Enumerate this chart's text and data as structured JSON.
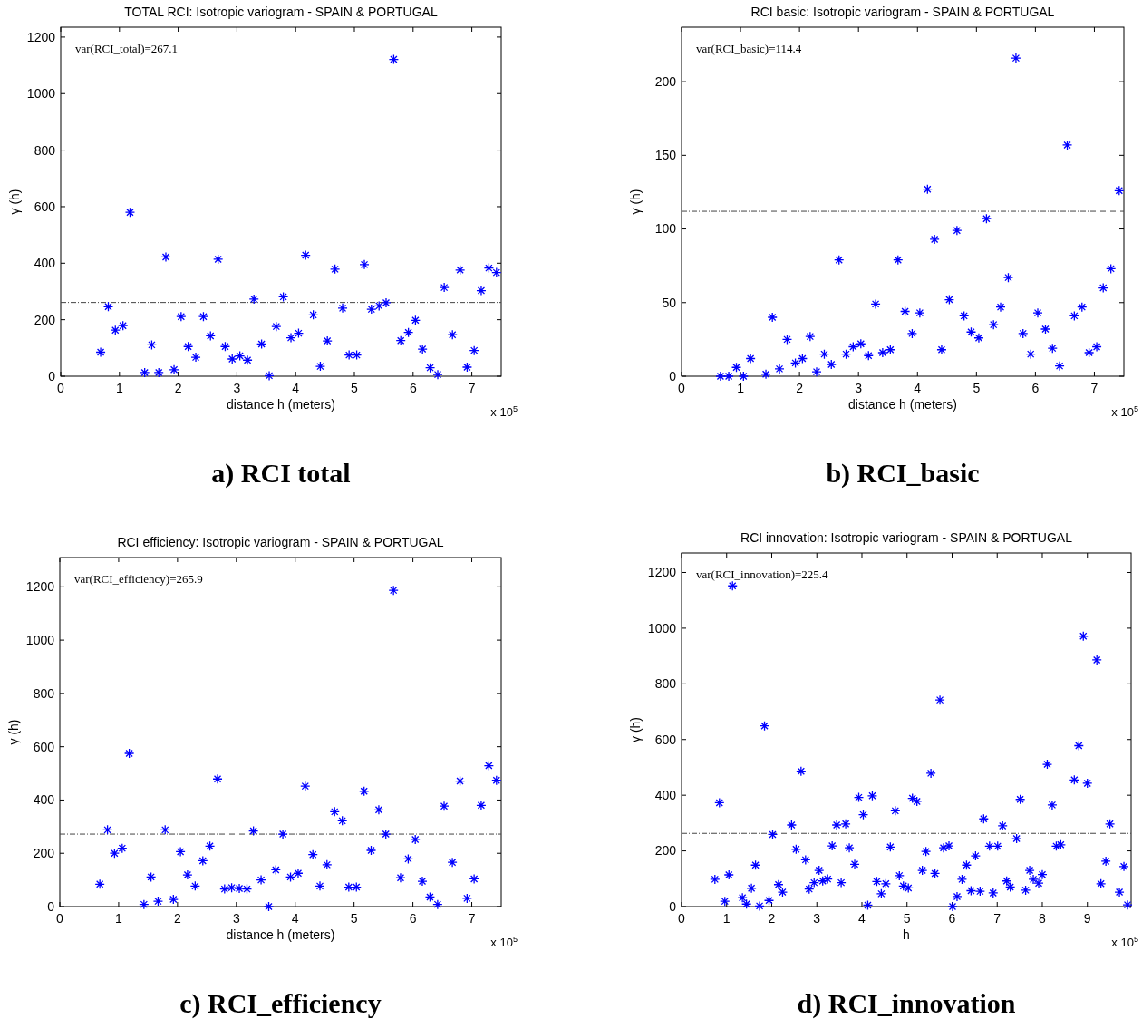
{
  "chart_data": [
    {
      "type": "scatter",
      "title": "TOTAL RCI: Isotropic variogram - SPAIN & PORTUGAL",
      "xlabel": "distance h (meters)",
      "ylabel": "γ (h)",
      "annotations": [
        "var(RCI_total)=267.1",
        "x 10$^{5}$",
        "a) RCI total"
      ],
      "xlim": [
        0,
        7.5
      ],
      "ylim": [
        0,
        1235
      ],
      "xticks": [
        0,
        1,
        2,
        3,
        4,
        5,
        6,
        7
      ],
      "yticks": [
        0,
        200,
        400,
        600,
        800,
        1000,
        1200
      ],
      "grid": false,
      "marker": "cross",
      "x": [
        0.68,
        0.81,
        0.93,
        1.06,
        1.18,
        1.43,
        1.55,
        1.67,
        1.79,
        1.93,
        2.05,
        2.17,
        2.3,
        2.43,
        2.55,
        2.68,
        2.8,
        2.92,
        3.05,
        3.18,
        3.29,
        3.42,
        3.55,
        3.67,
        3.79,
        3.92,
        4.05,
        4.17,
        4.3,
        4.42,
        4.54,
        4.67,
        4.8,
        4.91,
        5.04,
        5.17,
        5.29,
        5.42,
        5.54,
        5.67,
        5.79,
        5.92,
        6.04,
        6.16,
        6.29,
        6.42,
        6.53,
        6.67,
        6.8,
        6.92,
        7.04,
        7.16,
        7.29,
        7.42
      ],
      "series": [
        {
          "color": "#0000ff",
          "values": [
            85,
            246,
            163,
            179,
            580,
            13,
            111,
            13,
            422,
            23,
            211,
            105,
            67,
            211,
            143,
            414,
            105,
            61,
            72,
            57,
            273,
            114,
            2,
            176,
            281,
            136,
            152,
            428,
            217,
            35,
            125,
            379,
            241,
            75,
            75,
            395,
            237,
            249,
            260,
            1121,
            126,
            155,
            198,
            96,
            30,
            6,
            314,
            147,
            376,
            32,
            91,
            303,
            383,
            367
          ]
        }
      ],
      "ref_lines": [
        {
          "axis": "y",
          "value": 261,
          "color": "#444444",
          "line_style": "dashed"
        }
      ]
    },
    {
      "type": "scatter",
      "title": "RCI basic: Isotropic variogram - SPAIN & PORTUGAL",
      "xlabel": "distance h (meters)",
      "ylabel": "γ (h)",
      "annotations": [
        "var(RCI_basic)=114.4",
        "x 10$^{5}$",
        "b) RCI_basic"
      ],
      "xlim": [
        0,
        7.5
      ],
      "ylim": [
        0,
        237
      ],
      "xticks": [
        0,
        1,
        2,
        3,
        4,
        5,
        6,
        7
      ],
      "yticks": [
        0,
        50,
        100,
        150,
        200
      ],
      "grid": false,
      "marker": "cross",
      "x": [
        0.66,
        0.8,
        0.93,
        1.05,
        1.17,
        1.43,
        1.54,
        1.66,
        1.79,
        1.93,
        2.05,
        2.18,
        2.29,
        2.42,
        2.54,
        2.67,
        2.79,
        2.91,
        3.04,
        3.17,
        3.29,
        3.41,
        3.54,
        3.67,
        3.79,
        3.91,
        4.04,
        4.17,
        4.29,
        4.41,
        4.54,
        4.67,
        4.79,
        4.91,
        5.04,
        5.17,
        5.29,
        5.41,
        5.54,
        5.67,
        5.79,
        5.92,
        6.04,
        6.17,
        6.29,
        6.41,
        6.54,
        6.66,
        6.79,
        6.91,
        7.04,
        7.15,
        7.28,
        7.42
      ],
      "series": [
        {
          "color": "#0000ff",
          "values": [
            0,
            0,
            6,
            0,
            12,
            1.4,
            40,
            5,
            25,
            9,
            12,
            27,
            3,
            15,
            8,
            79,
            15,
            20,
            22,
            14,
            49,
            16,
            18,
            79,
            44,
            29,
            43,
            127,
            93,
            18,
            52,
            99,
            41,
            30,
            26,
            107,
            35,
            47,
            67,
            216,
            29,
            15,
            43,
            32,
            19,
            7,
            157,
            41,
            47,
            16,
            20,
            60,
            73,
            126
          ]
        }
      ],
      "ref_lines": [
        {
          "axis": "y",
          "value": 112,
          "color": "#444444",
          "line_style": "dashed"
        }
      ]
    },
    {
      "type": "scatter",
      "title": "RCI efficiency: Isotropic variogram - SPAIN & PORTUGAL",
      "xlabel": "distance h (meters)",
      "ylabel": "γ (h)",
      "annotations": [
        "var(RCI_efficiency)=265.9",
        "x 10$^{5}$",
        "c) RCI_efficiency"
      ],
      "xlim": [
        0,
        7.5
      ],
      "ylim": [
        0,
        1310
      ],
      "xticks": [
        0,
        1,
        2,
        3,
        4,
        5,
        6,
        7
      ],
      "yticks": [
        0,
        200,
        400,
        600,
        800,
        1000,
        1200
      ],
      "grid": false,
      "marker": "cross",
      "x": [
        0.68,
        0.81,
        0.93,
        1.06,
        1.18,
        1.43,
        1.55,
        1.67,
        1.79,
        1.93,
        2.05,
        2.17,
        2.3,
        2.43,
        2.55,
        2.68,
        2.8,
        2.92,
        3.05,
        3.18,
        3.29,
        3.42,
        3.55,
        3.67,
        3.79,
        3.92,
        4.05,
        4.17,
        4.3,
        4.42,
        4.54,
        4.67,
        4.8,
        4.91,
        5.04,
        5.17,
        5.29,
        5.42,
        5.54,
        5.67,
        5.79,
        5.92,
        6.04,
        6.16,
        6.29,
        6.42,
        6.53,
        6.67,
        6.8,
        6.92,
        7.04,
        7.16,
        7.29,
        7.42
      ],
      "series": [
        {
          "color": "#0000ff",
          "values": [
            84,
            288,
            200,
            219,
            575,
            8,
            111,
            20,
            288,
            27,
            206,
            119,
            77,
            172,
            227,
            479,
            66,
            71,
            68,
            66,
            284,
            100,
            0,
            138,
            272,
            111,
            125,
            452,
            195,
            77,
            157,
            356,
            322,
            73,
            73,
            433,
            211,
            363,
            272,
            1187,
            108,
            179,
            252,
            95,
            36,
            8,
            377,
            166,
            471,
            31,
            104,
            380,
            529,
            474
          ]
        }
      ],
      "ref_lines": [
        {
          "axis": "y",
          "value": 272,
          "color": "#444444",
          "line_style": "dashed"
        }
      ]
    },
    {
      "type": "scatter",
      "title": "RCI innovation: Isotropic variogram - SPAIN & PORTUGAL",
      "xlabel": "h",
      "ylabel": "γ (h)",
      "annotations": [
        "var(RCI_innovation)=225.4",
        "x 10$^{5}$",
        "d) RCI_innovation"
      ],
      "xlim": [
        0,
        9.97
      ],
      "ylim": [
        0,
        1270
      ],
      "xticks": [
        0,
        1,
        2,
        3,
        4,
        5,
        6,
        7,
        8,
        9
      ],
      "yticks": [
        0,
        200,
        400,
        600,
        800,
        1000,
        1200
      ],
      "grid": false,
      "marker": "cross",
      "x": [
        0.74,
        0.84,
        0.96,
        1.05,
        1.13,
        1.35,
        1.44,
        1.55,
        1.64,
        1.73,
        1.84,
        1.94,
        2.02,
        2.15,
        2.24,
        2.44,
        2.54,
        2.65,
        2.75,
        2.83,
        2.94,
        3.05,
        3.13,
        3.24,
        3.34,
        3.44,
        3.54,
        3.64,
        3.72,
        3.84,
        3.93,
        4.03,
        4.13,
        4.23,
        4.33,
        4.43,
        4.53,
        4.63,
        4.74,
        4.83,
        4.92,
        5.03,
        5.12,
        5.22,
        5.34,
        5.42,
        5.53,
        5.62,
        5.73,
        5.81,
        5.93,
        6.01,
        6.11,
        6.22,
        6.32,
        6.42,
        6.52,
        6.62,
        6.7,
        6.83,
        6.91,
        7.01,
        7.12,
        7.21,
        7.29,
        7.43,
        7.51,
        7.63,
        7.72,
        7.8,
        7.92,
        8.0,
        8.11,
        8.22,
        8.31,
        8.41,
        8.71,
        8.81,
        8.91,
        9.0,
        9.21,
        9.3,
        9.41,
        9.5,
        9.71,
        9.81,
        9.89
      ],
      "series": [
        {
          "color": "#0000ff",
          "values": [
            98,
            373,
            19,
            114,
            1152,
            32,
            9,
            66,
            149,
            2,
            649,
            22,
            259,
            79,
            52,
            293,
            206,
            486,
            168,
            63,
            86,
            130,
            92,
            99,
            218,
            293,
            86,
            297,
            211,
            152,
            392,
            330,
            5,
            398,
            90,
            46,
            82,
            214,
            344,
            111,
            74,
            67,
            389,
            378,
            130,
            198,
            479,
            119,
            742,
            211,
            218,
            0,
            36,
            98,
            149,
            57,
            182,
            55,
            315,
            217,
            49,
            217,
            290,
            92,
            70,
            244,
            385,
            59,
            130,
            98,
            84,
            115,
            511,
            365,
            217,
            222,
            455,
            578,
            971,
            443,
            886,
            82,
            163,
            297,
            52,
            144,
            6
          ]
        }
      ],
      "ref_lines": [
        {
          "axis": "y",
          "value": 263,
          "color": "#444444",
          "line_style": "dashed"
        }
      ]
    }
  ]
}
